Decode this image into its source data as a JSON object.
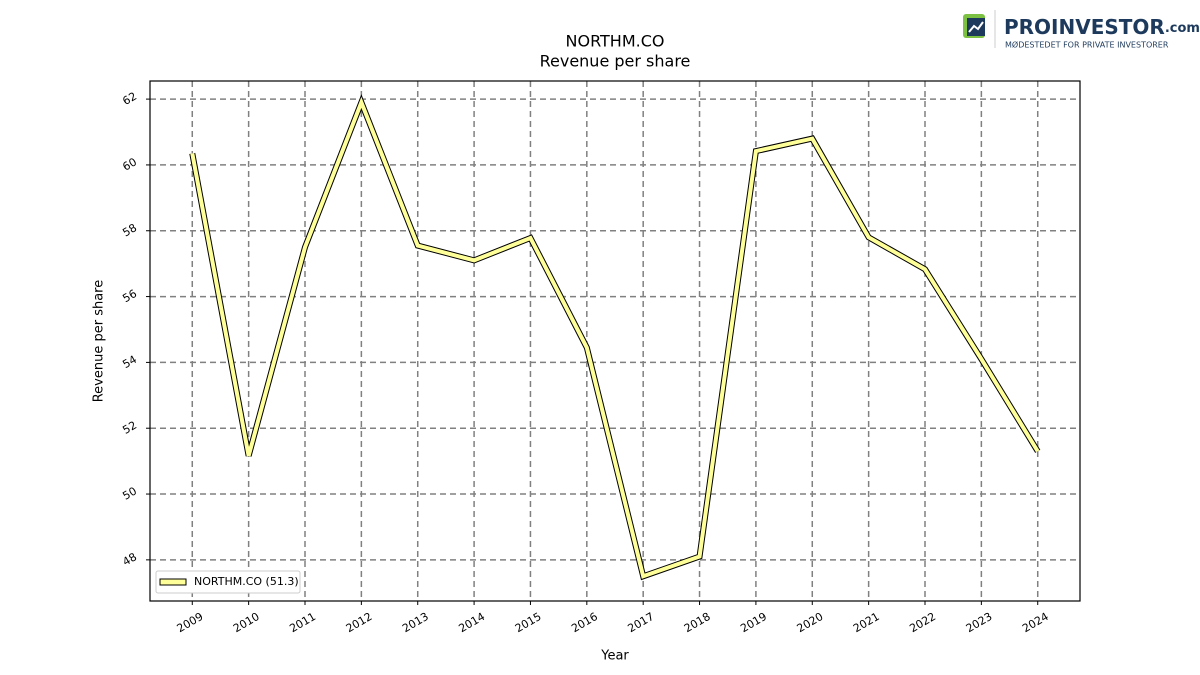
{
  "logo": {
    "name": "PROINVESTOR",
    "suffix": ".com",
    "tagline": "MØDESTEDET FOR PRIVATE INVESTORER"
  },
  "chart_data": {
    "type": "line",
    "title": "NORTHM.CO",
    "subtitle": "Revenue per share",
    "x_label": "Year",
    "y_label": "Revenue per share",
    "x": [
      2009,
      2010,
      2011,
      2012,
      2013,
      2014,
      2015,
      2016,
      2017,
      2018,
      2019,
      2020,
      2021,
      2022,
      2023,
      2024
    ],
    "series": [
      {
        "name": "NORTHM.CO (51.3)",
        "color": "#ffff99",
        "values": [
          60.35,
          51.16,
          57.5,
          61.9,
          57.55,
          57.1,
          57.78,
          54.45,
          47.5,
          48.1,
          60.42,
          60.8,
          57.8,
          56.83,
          54.1,
          51.3
        ]
      }
    ],
    "xlim": [
      2008.25,
      2024.75
    ],
    "ylim": [
      46.75,
      62.55
    ],
    "xticks": [
      2009,
      2010,
      2011,
      2012,
      2013,
      2014,
      2015,
      2016,
      2017,
      2018,
      2019,
      2020,
      2021,
      2022,
      2023,
      2024
    ],
    "yticks": [
      48,
      50,
      52,
      54,
      56,
      58,
      60,
      62
    ],
    "grid": true,
    "legend": "lower left"
  }
}
